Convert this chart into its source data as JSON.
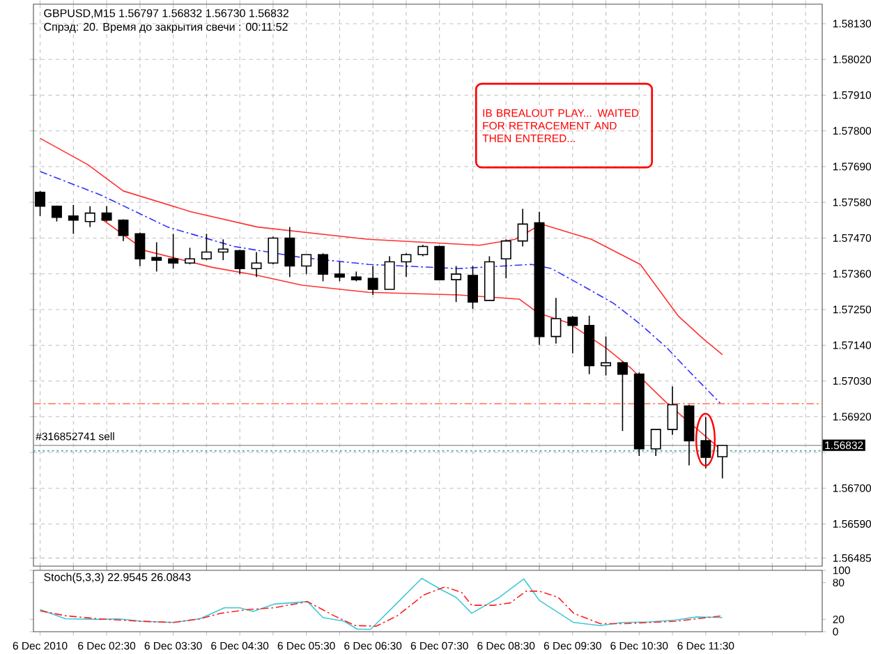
{
  "chart_data": [
    {
      "type": "candlestick",
      "title": "GBPUSD,M15  1.56797 1.56832 1.56730 1.56832",
      "subtitle": "Спрэд:  20. Время до закрытия свечи : 00:11:52",
      "x": [
        "2010-12-06T01:30",
        "2010-12-06T01:45",
        "2010-12-06T02:00",
        "2010-12-06T02:15",
        "2010-12-06T02:30",
        "2010-12-06T02:45",
        "2010-12-06T03:00",
        "2010-12-06T03:15",
        "2010-12-06T03:30",
        "2010-12-06T03:45",
        "2010-12-06T04:00",
        "2010-12-06T04:15",
        "2010-12-06T04:30",
        "2010-12-06T04:45",
        "2010-12-06T05:00",
        "2010-12-06T05:15",
        "2010-12-06T05:30",
        "2010-12-06T05:45",
        "2010-12-06T06:00",
        "2010-12-06T06:15",
        "2010-12-06T06:30",
        "2010-12-06T06:45",
        "2010-12-06T07:00",
        "2010-12-06T07:15",
        "2010-12-06T07:30",
        "2010-12-06T07:45",
        "2010-12-06T08:00",
        "2010-12-06T08:15",
        "2010-12-06T08:30",
        "2010-12-06T08:45",
        "2010-12-06T09:00",
        "2010-12-06T09:15",
        "2010-12-06T09:30",
        "2010-12-06T09:45",
        "2010-12-06T10:00",
        "2010-12-06T10:15",
        "2010-12-06T10:30",
        "2010-12-06T10:45",
        "2010-12-06T11:00",
        "2010-12-06T11:15",
        "2010-12-06T11:30",
        "2010-12-06T11:45"
      ],
      "ohlc": [
        [
          1.57611,
          1.57615,
          1.57538,
          1.57568
        ],
        [
          1.57568,
          1.5757,
          1.57521,
          1.57534
        ],
        [
          1.57538,
          1.57572,
          1.57483,
          1.57525
        ],
        [
          1.57521,
          1.57568,
          1.57504,
          1.57547
        ],
        [
          1.57547,
          1.57568,
          1.57521,
          1.57525
        ],
        [
          1.57525,
          1.57528,
          1.57461,
          1.57478
        ],
        [
          1.57483,
          1.57487,
          1.57384,
          1.57406
        ],
        [
          1.5741,
          1.57457,
          1.57367,
          1.57402
        ],
        [
          1.57406,
          1.57483,
          1.57376,
          1.57393
        ],
        [
          1.57393,
          1.5744,
          1.57389,
          1.57406
        ],
        [
          1.57406,
          1.57483,
          1.57402,
          1.57427
        ],
        [
          1.57427,
          1.57466,
          1.57402,
          1.57436
        ],
        [
          1.57431,
          1.57434,
          1.57359,
          1.57376
        ],
        [
          1.57376,
          1.57427,
          1.5735,
          1.57393
        ],
        [
          1.57393,
          1.57474,
          1.57389,
          1.5747
        ],
        [
          1.5747,
          1.57504,
          1.5735,
          1.57384
        ],
        [
          1.57384,
          1.57419,
          1.57359,
          1.57419
        ],
        [
          1.57419,
          1.57423,
          1.57337,
          1.57359
        ],
        [
          1.57359,
          1.57397,
          1.57337,
          1.5735
        ],
        [
          1.5735,
          1.57367,
          1.57337,
          1.57342
        ],
        [
          1.57346,
          1.57384,
          1.57295,
          1.57312
        ],
        [
          1.57312,
          1.57414,
          1.57312,
          1.57397
        ],
        [
          1.57397,
          1.57423,
          1.5735,
          1.57419
        ],
        [
          1.57419,
          1.57449,
          1.57414,
          1.57444
        ],
        [
          1.57444,
          1.57446,
          1.5734,
          1.57342
        ],
        [
          1.57342,
          1.57384,
          1.57273,
          1.57359
        ],
        [
          1.57355,
          1.57384,
          1.57252,
          1.57273
        ],
        [
          1.57278,
          1.57414,
          1.57278,
          1.57397
        ],
        [
          1.57406,
          1.57466,
          1.57346,
          1.57461
        ],
        [
          1.57461,
          1.5756,
          1.57444,
          1.57513
        ],
        [
          1.57517,
          1.57551,
          1.57141,
          1.57167
        ],
        [
          1.57167,
          1.57286,
          1.57145,
          1.57222
        ],
        [
          1.57226,
          1.5723,
          1.57115,
          1.57201
        ],
        [
          1.57201,
          1.57231,
          1.57051,
          1.57077
        ],
        [
          1.57077,
          1.57167,
          1.57047,
          1.57086
        ],
        [
          1.57086,
          1.5709,
          1.56876,
          1.57051
        ],
        [
          1.57051,
          1.57056,
          1.56799,
          1.56821
        ],
        [
          1.56821,
          1.56881,
          1.56799,
          1.56881
        ],
        [
          1.56881,
          1.57013,
          1.56864,
          1.56957
        ],
        [
          1.56953,
          1.56957,
          1.5677,
          1.56846
        ],
        [
          1.56846,
          1.56919,
          1.56761,
          1.56795
        ],
        [
          1.56797,
          1.56832,
          1.5673,
          1.56832
        ]
      ],
      "series": [
        {
          "type": "line",
          "color": "#ff3030",
          "line_style": "solid",
          "x": [
            "2010-12-06T01:30",
            "2010-12-06T02:13",
            "2010-12-06T02:45",
            "2010-12-06T03:46",
            "2010-12-06T04:46",
            "2010-12-06T06:26",
            "2010-12-06T08:06",
            "2010-12-06T08:38",
            "2010-12-06T09:02",
            "2010-12-06T09:47",
            "2010-12-06T10:31",
            "2010-12-06T11:05",
            "2010-12-06T11:27",
            "2010-12-06T11:45"
          ],
          "values": [
            1.57777,
            1.57696,
            1.57615,
            1.57551,
            1.57504,
            1.57466,
            1.57448,
            1.57466,
            1.57513,
            1.57466,
            1.57389,
            1.57231,
            1.57162,
            1.57111
          ]
        },
        {
          "type": "line",
          "color": "#3030ff",
          "line_style": "dashed",
          "x": [
            "2010-12-06T01:30",
            "2010-12-06T02:25",
            "2010-12-06T03:25",
            "2010-12-06T04:25",
            "2010-12-06T05:26",
            "2010-12-06T06:26",
            "2010-12-06T07:47",
            "2010-12-06T08:53",
            "2010-12-06T09:11",
            "2010-12-06T09:38",
            "2010-12-06T10:07",
            "2010-12-06T10:31",
            "2010-12-06T10:55",
            "2010-12-06T11:15",
            "2010-12-06T11:43"
          ],
          "values": [
            1.57675,
            1.57602,
            1.57504,
            1.57444,
            1.5741,
            1.57389,
            1.57376,
            1.57389,
            1.57376,
            1.57325,
            1.57269,
            1.57205,
            1.57132,
            1.5706,
            1.56962
          ]
        },
        {
          "type": "line",
          "color": "#ff3030",
          "line_style": "solid",
          "x": [
            "2010-12-06T02:25",
            "2010-12-06T03:05",
            "2010-12-06T04:05",
            "2010-12-06T04:46",
            "2010-12-06T05:26",
            "2010-12-06T06:26",
            "2010-12-06T07:47",
            "2010-12-06T08:42",
            "2010-12-06T08:59",
            "2010-12-06T09:26",
            "2010-12-06T10:00",
            "2010-12-06T10:23",
            "2010-12-06T10:55",
            "2010-12-06T11:15",
            "2010-12-06T11:43"
          ],
          "values": [
            1.5753,
            1.57431,
            1.5738,
            1.57355,
            1.57325,
            1.57303,
            1.57295,
            1.57282,
            1.57239,
            1.57209,
            1.57132,
            1.57068,
            1.56962,
            null,
            1.56821
          ]
        }
      ],
      "xlim": [
        "2010-12-06T01:24",
        "2010-12-06T13:15"
      ],
      "ylim": [
        1.5646,
        1.5819
      ],
      "xticks": [
        "2010-12-06T01:30",
        "2010-12-06T02:00",
        "2010-12-06T02:30",
        "2010-12-06T03:00",
        "2010-12-06T03:30",
        "2010-12-06T04:00",
        "2010-12-06T04:30",
        "2010-12-06T05:00",
        "2010-12-06T05:30",
        "2010-12-06T06:00",
        "2010-12-06T06:30",
        "2010-12-06T07:00",
        "2010-12-06T07:30",
        "2010-12-06T08:00",
        "2010-12-06T08:30",
        "2010-12-06T09:00",
        "2010-12-06T09:30",
        "2010-12-06T10:00",
        "2010-12-06T10:30",
        "2010-12-06T11:00",
        "2010-12-06T11:30",
        "2010-12-06T12:00",
        "2010-12-06T12:30",
        "2010-12-06T13:00"
      ],
      "yticks": [
        {
          "value": 1.5813,
          "label": "1.58130"
        },
        {
          "value": 1.5802,
          "label": "1.58020"
        },
        {
          "value": 1.5791,
          "label": "1.57910"
        },
        {
          "value": 1.578,
          "label": "1.57800"
        },
        {
          "value": 1.5769,
          "label": "1.57690"
        },
        {
          "value": 1.5758,
          "label": "1.57580"
        },
        {
          "value": 1.5747,
          "label": "1.57470"
        },
        {
          "value": 1.5736,
          "label": "1.57360"
        },
        {
          "value": 1.5725,
          "label": "1.57250"
        },
        {
          "value": 1.5714,
          "label": "1.57140"
        },
        {
          "value": 1.5703,
          "label": "1.57030"
        },
        {
          "value": 1.5692,
          "label": "1.56920"
        },
        {
          "value": 1.5681,
          "label": null
        },
        {
          "value": 1.567,
          "label": "1.56700"
        },
        {
          "value": 1.5659,
          "label": "1.56590"
        },
        {
          "value": 1.56485,
          "label": "1.56485"
        }
      ],
      "grid": true,
      "tick_labels": "y",
      "ref_lines": [
        {
          "axis": "y",
          "value": 1.5696,
          "color": "#ff7050",
          "line_style": "dashed"
        },
        {
          "axis": "y",
          "value": 1.56815,
          "label": "#316852741 sell",
          "color": "#40a0a0",
          "line_style": "dotted"
        },
        {
          "axis": "y",
          "value": 1.56832,
          "label": "1.56832",
          "color": "#a0a0a0",
          "line_style": "solid"
        }
      ],
      "annotations": [
        "IB BREALOUT PLAY... WAITED FOR RETRACEMENT AND THEN ENTERED..."
      ]
    },
    {
      "type": "line",
      "title": "Stoch(5,3,3) 22.9545 26.0843",
      "series": [
        {
          "color": "#40c8d8",
          "line_style": "solid",
          "x": [
            "2010-12-06T01:30",
            "2010-12-06T01:53",
            "2010-12-06T02:22",
            "2010-12-06T02:41",
            "2010-12-06T03:01",
            "2010-12-06T03:30",
            "2010-12-06T03:54",
            "2010-12-06T04:16",
            "2010-12-06T04:30",
            "2010-12-06T04:42",
            "2010-12-06T05:01",
            "2010-12-06T05:31",
            "2010-12-06T05:45",
            "2010-12-06T06:04",
            "2010-12-06T06:16",
            "2010-12-06T06:28",
            "2010-12-06T06:52",
            "2010-12-06T07:14",
            "2010-12-06T07:31",
            "2010-12-06T07:45",
            "2010-12-06T07:59",
            "2010-12-06T08:24",
            "2010-12-06T08:46",
            "2010-12-06T09:00",
            "2010-12-06T09:31",
            "2010-12-06T09:55",
            "2010-12-06T10:15",
            "2010-12-06T10:39",
            "2010-12-06T11:03",
            "2010-12-06T11:22",
            "2010-12-06T11:45"
          ],
          "values": [
            36,
            21,
            20,
            21,
            17,
            15,
            21,
            39,
            39,
            33,
            45,
            49,
            23,
            17,
            4,
            4,
            47,
            87,
            69,
            56,
            30,
            56,
            86,
            51,
            15,
            10,
            15,
            16,
            19,
            24,
            23
          ]
        },
        {
          "color": "#ff2020",
          "line_style": "dashed",
          "x": [
            "2010-12-06T01:30",
            "2010-12-06T01:53",
            "2010-12-06T02:22",
            "2010-12-06T03:01",
            "2010-12-06T03:30",
            "2010-12-06T03:54",
            "2010-12-06T04:13",
            "2010-12-06T04:37",
            "2010-12-06T05:01",
            "2010-12-06T05:31",
            "2010-12-06T05:55",
            "2010-12-06T06:14",
            "2010-12-06T06:33",
            "2010-12-06T06:52",
            "2010-12-06T07:16",
            "2010-12-06T07:35",
            "2010-12-06T07:50",
            "2010-12-06T07:59",
            "2010-12-06T08:19",
            "2010-12-06T08:34",
            "2010-12-06T08:48",
            "2010-12-06T09:00",
            "2010-12-06T09:17",
            "2010-12-06T09:31",
            "2010-12-06T09:55",
            "2010-12-06T10:15",
            "2010-12-06T10:39",
            "2010-12-06T11:03",
            "2010-12-06T11:22",
            "2010-12-06T11:45"
          ],
          "values": [
            34,
            26,
            21,
            17,
            15,
            21,
            30,
            36,
            39,
            49,
            26,
            10,
            9,
            26,
            60,
            73,
            64,
            43,
            43,
            47,
            66,
            66,
            56,
            30,
            13,
            13,
            15,
            17,
            21,
            26
          ]
        }
      ],
      "xlim": [
        "2010-12-06T01:24",
        "2010-12-06T13:15"
      ],
      "ylim": [
        0,
        100
      ],
      "xticks": [
        {
          "value": "2010-12-06T01:30",
          "label": "6 Dec 2010"
        },
        {
          "value": "2010-12-06T02:00",
          "label": null
        },
        {
          "value": "2010-12-06T02:30",
          "label": "6 Dec 02:30"
        },
        {
          "value": "2010-12-06T03:00",
          "label": null
        },
        {
          "value": "2010-12-06T03:30",
          "label": "6 Dec 03:30"
        },
        {
          "value": "2010-12-06T04:00",
          "label": null
        },
        {
          "value": "2010-12-06T04:30",
          "label": "6 Dec 04:30"
        },
        {
          "value": "2010-12-06T05:00",
          "label": null
        },
        {
          "value": "2010-12-06T05:30",
          "label": "6 Dec 05:30"
        },
        {
          "value": "2010-12-06T06:00",
          "label": null
        },
        {
          "value": "2010-12-06T06:30",
          "label": "6 Dec 06:30"
        },
        {
          "value": "2010-12-06T07:00",
          "label": null
        },
        {
          "value": "2010-12-06T07:30",
          "label": "6 Dec 07:30"
        },
        {
          "value": "2010-12-06T08:00",
          "label": null
        },
        {
          "value": "2010-12-06T08:30",
          "label": "6 Dec 08:30"
        },
        {
          "value": "2010-12-06T09:00",
          "label": null
        },
        {
          "value": "2010-12-06T09:30",
          "label": "6 Dec 09:30"
        },
        {
          "value": "2010-12-06T10:00",
          "label": null
        },
        {
          "value": "2010-12-06T10:30",
          "label": "6 Dec 10:30"
        },
        {
          "value": "2010-12-06T11:00",
          "label": null
        },
        {
          "value": "2010-12-06T11:30",
          "label": "6 Dec 11:30"
        },
        {
          "value": "2010-12-06T12:00",
          "label": null
        },
        {
          "value": "2010-12-06T12:30",
          "label": null
        },
        {
          "value": "2010-12-06T13:00",
          "label": null
        }
      ],
      "yticks": [
        0,
        20,
        80,
        100
      ]
    }
  ]
}
